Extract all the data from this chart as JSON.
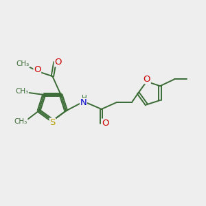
{
  "bg_color": "#eeeeee",
  "bond_color": "#3a6b35",
  "S_color": "#b8a000",
  "O_color": "#cc0000",
  "N_color": "#0000cc",
  "font_size": 8.5,
  "line_width": 1.4,
  "xlim": [
    -1.5,
    10.5
  ],
  "ylim": [
    -0.5,
    6.5
  ]
}
